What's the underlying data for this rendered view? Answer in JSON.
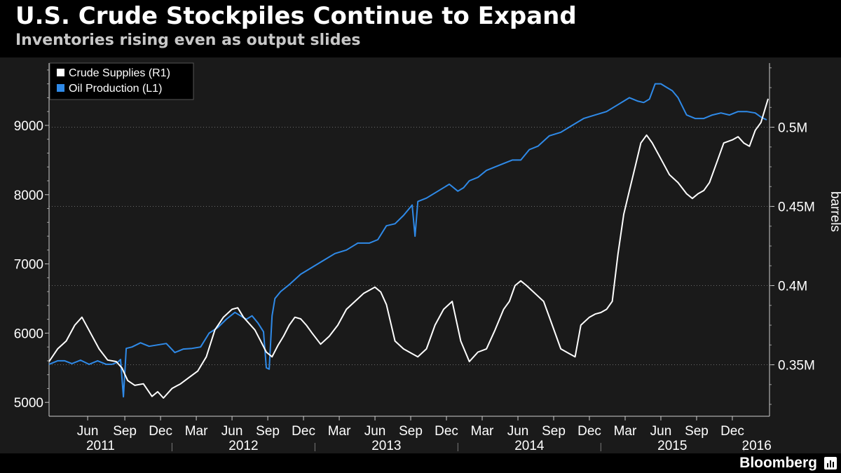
{
  "header": {
    "title": "U.S. Crude Stockpiles Continue to Expand",
    "subtitle": "Inventories rising even as output slides"
  },
  "footer": {
    "brand": "Bloomberg"
  },
  "icons": {
    "brand_icon": "bar-chart-icon"
  },
  "colors": {
    "crude": "#ffffff",
    "production": "#2f8ae8",
    "background": "#1a1a1a",
    "grid": "#6a6a6a"
  },
  "chart_data": {
    "type": "line",
    "title": "U.S. Crude Stockpiles Continue to Expand",
    "subtitle": "Inventories rising even as output slides",
    "x_range": [
      2011.14,
      2016.18
    ],
    "x_month_ticks": [
      {
        "x": 2011.41,
        "label": "Jun"
      },
      {
        "x": 2011.67,
        "label": "Sep"
      },
      {
        "x": 2011.92,
        "label": "Dec"
      },
      {
        "x": 2012.17,
        "label": "Mar"
      },
      {
        "x": 2012.42,
        "label": "Jun"
      },
      {
        "x": 2012.67,
        "label": "Sep"
      },
      {
        "x": 2012.92,
        "label": "Dec"
      },
      {
        "x": 2013.17,
        "label": "Mar"
      },
      {
        "x": 2013.42,
        "label": "Jun"
      },
      {
        "x": 2013.67,
        "label": "Sep"
      },
      {
        "x": 2013.92,
        "label": "Dec"
      },
      {
        "x": 2014.17,
        "label": "Mar"
      },
      {
        "x": 2014.42,
        "label": "Jun"
      },
      {
        "x": 2014.67,
        "label": "Sep"
      },
      {
        "x": 2014.92,
        "label": "Dec"
      },
      {
        "x": 2015.17,
        "label": "Mar"
      },
      {
        "x": 2015.42,
        "label": "Jun"
      },
      {
        "x": 2015.67,
        "label": "Sep"
      },
      {
        "x": 2015.92,
        "label": "Dec"
      }
    ],
    "x_year_labels": [
      {
        "x": 2011.5,
        "label": "2011"
      },
      {
        "x": 2012.5,
        "label": "2012"
      },
      {
        "x": 2013.5,
        "label": "2013"
      },
      {
        "x": 2014.5,
        "label": "2014"
      },
      {
        "x": 2015.5,
        "label": "2015"
      },
      {
        "x": 2016.09,
        "label": "2016"
      }
    ],
    "year_separators": [
      2012.0,
      2013.0,
      2014.0,
      2015.0,
      2016.0
    ],
    "left_axis": {
      "range": [
        4800,
        9900
      ],
      "ticks": [
        5000,
        6000,
        7000,
        8000,
        9000
      ],
      "tick_labels": [
        "5000",
        "6000",
        "7000",
        "8000",
        "9000"
      ]
    },
    "right_axis": {
      "label": "barrels",
      "range": [
        0.3175,
        0.5405
      ],
      "ticks": [
        0.35,
        0.4,
        0.45,
        0.5
      ],
      "tick_labels": [
        "0.35M",
        "0.4M",
        "0.45M",
        "0.5M"
      ]
    },
    "legend": [
      {
        "name": "Crude Supplies (R1)",
        "color": "#ffffff",
        "axis": "right"
      },
      {
        "name": "Oil Production (L1)",
        "color": "#2f8ae8",
        "axis": "left"
      }
    ],
    "series": [
      {
        "name": "Oil Production (L1)",
        "axis": "left",
        "color": "#2f8ae8",
        "x": [
          2011.14,
          2011.2,
          2011.25,
          2011.3,
          2011.36,
          2011.42,
          2011.48,
          2011.54,
          2011.58,
          2011.62,
          2011.64,
          2011.66,
          2011.68,
          2011.72,
          2011.78,
          2011.84,
          2011.9,
          2011.96,
          2012.02,
          2012.08,
          2012.14,
          2012.2,
          2012.26,
          2012.32,
          2012.38,
          2012.44,
          2012.48,
          2012.52,
          2012.56,
          2012.6,
          2012.64,
          2012.66,
          2012.68,
          2012.7,
          2012.72,
          2012.76,
          2012.82,
          2012.9,
          2012.98,
          2013.06,
          2013.14,
          2013.22,
          2013.3,
          2013.38,
          2013.44,
          2013.5,
          2013.56,
          2013.62,
          2013.68,
          2013.7,
          2013.72,
          2013.78,
          2013.86,
          2013.94,
          2014.0,
          2014.04,
          2014.08,
          2014.14,
          2014.2,
          2014.26,
          2014.32,
          2014.38,
          2014.44,
          2014.5,
          2014.56,
          2014.64,
          2014.72,
          2014.8,
          2014.88,
          2014.96,
          2015.04,
          2015.12,
          2015.2,
          2015.26,
          2015.3,
          2015.34,
          2015.38,
          2015.42,
          2015.46,
          2015.5,
          2015.54,
          2015.6,
          2015.66,
          2015.72,
          2015.78,
          2015.84,
          2015.9,
          2015.96,
          2016.02,
          2016.08,
          2016.12,
          2016.16
        ],
        "values": [
          5550,
          5600,
          5600,
          5560,
          5610,
          5550,
          5600,
          5550,
          5550,
          5580,
          5620,
          5080,
          5780,
          5800,
          5860,
          5810,
          5830,
          5850,
          5720,
          5770,
          5780,
          5800,
          6000,
          6080,
          6200,
          6300,
          6250,
          6200,
          6250,
          6150,
          6020,
          5500,
          5480,
          6250,
          6500,
          6600,
          6700,
          6850,
          6950,
          7050,
          7150,
          7200,
          7300,
          7300,
          7350,
          7550,
          7580,
          7700,
          7850,
          7400,
          7900,
          7950,
          8050,
          8150,
          8050,
          8100,
          8200,
          8250,
          8350,
          8400,
          8450,
          8500,
          8500,
          8650,
          8700,
          8850,
          8900,
          9000,
          9100,
          9150,
          9200,
          9300,
          9400,
          9350,
          9330,
          9380,
          9600,
          9600,
          9550,
          9500,
          9400,
          9150,
          9100,
          9100,
          9150,
          9180,
          9150,
          9200,
          9200,
          9180,
          9120,
          9080
        ]
      },
      {
        "name": "Crude Supplies (R1)",
        "axis": "right",
        "color": "#ffffff",
        "x": [
          2011.14,
          2011.2,
          2011.26,
          2011.32,
          2011.37,
          2011.43,
          2011.49,
          2011.55,
          2011.61,
          2011.65,
          2011.69,
          2011.74,
          2011.8,
          2011.86,
          2011.9,
          2011.94,
          2012.0,
          2012.06,
          2012.12,
          2012.18,
          2012.24,
          2012.3,
          2012.36,
          2012.42,
          2012.46,
          2012.5,
          2012.54,
          2012.58,
          2012.62,
          2012.66,
          2012.7,
          2012.74,
          2012.78,
          2012.82,
          2012.86,
          2012.9,
          2012.94,
          2012.98,
          2013.04,
          2013.1,
          2013.16,
          2013.22,
          2013.28,
          2013.34,
          2013.38,
          2013.42,
          2013.46,
          2013.5,
          2013.56,
          2013.62,
          2013.68,
          2013.72,
          2013.78,
          2013.84,
          2013.9,
          2013.96,
          2014.02,
          2014.08,
          2014.14,
          2014.2,
          2014.26,
          2014.32,
          2014.36,
          2014.4,
          2014.44,
          2014.48,
          2014.54,
          2014.6,
          2014.66,
          2014.72,
          2014.78,
          2014.82,
          2014.86,
          2014.92,
          2014.96,
          2015.0,
          2015.04,
          2015.08,
          2015.12,
          2015.16,
          2015.2,
          2015.24,
          2015.28,
          2015.32,
          2015.36,
          2015.42,
          2015.48,
          2015.54,
          2015.6,
          2015.64,
          2015.68,
          2015.72,
          2015.76,
          2015.82,
          2015.86,
          2015.92,
          2015.96,
          2016.0,
          2016.04,
          2016.08,
          2016.12,
          2016.17
        ],
        "values": [
          0.352,
          0.36,
          0.365,
          0.375,
          0.38,
          0.37,
          0.36,
          0.353,
          0.352,
          0.348,
          0.34,
          0.337,
          0.338,
          0.33,
          0.333,
          0.329,
          0.335,
          0.338,
          0.342,
          0.346,
          0.355,
          0.372,
          0.38,
          0.385,
          0.386,
          0.38,
          0.376,
          0.372,
          0.365,
          0.358,
          0.355,
          0.362,
          0.368,
          0.375,
          0.38,
          0.379,
          0.375,
          0.37,
          0.363,
          0.368,
          0.375,
          0.385,
          0.39,
          0.395,
          0.397,
          0.399,
          0.396,
          0.388,
          0.365,
          0.36,
          0.357,
          0.355,
          0.36,
          0.375,
          0.385,
          0.39,
          0.365,
          0.352,
          0.358,
          0.36,
          0.372,
          0.385,
          0.39,
          0.4,
          0.403,
          0.4,
          0.395,
          0.39,
          0.375,
          0.36,
          0.357,
          0.355,
          0.375,
          0.38,
          0.382,
          0.383,
          0.385,
          0.39,
          0.42,
          0.445,
          0.46,
          0.475,
          0.49,
          0.495,
          0.49,
          0.48,
          0.47,
          0.465,
          0.458,
          0.455,
          0.458,
          0.46,
          0.465,
          0.48,
          0.49,
          0.492,
          0.494,
          0.49,
          0.488,
          0.498,
          0.503,
          0.518
        ]
      }
    ]
  }
}
